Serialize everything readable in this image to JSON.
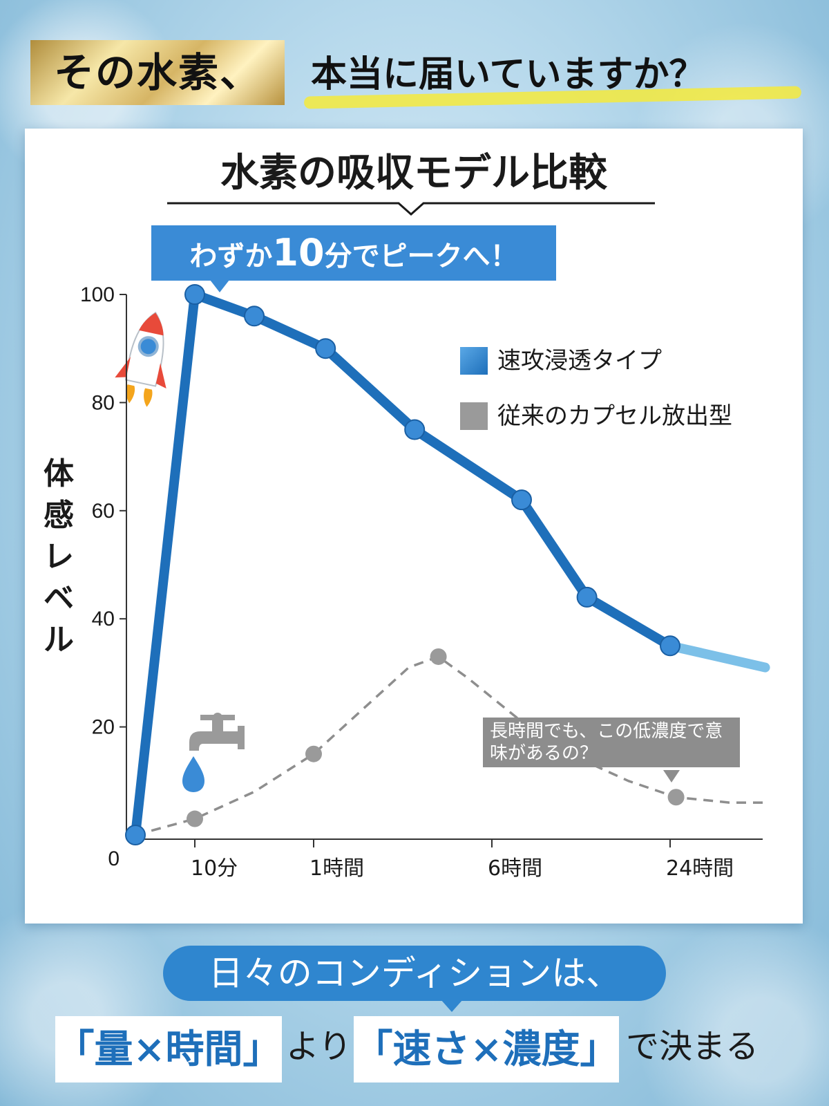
{
  "headline": {
    "highlight": "その水素、",
    "rest": "本当に届いていますか？"
  },
  "card_title": "水素の吸収モデル比較",
  "callout": {
    "pre": "わずか",
    "num": "10",
    "post": "分でピークへ！"
  },
  "note": "長時間でも、この低濃度で意味があるの？",
  "footer": {
    "pill": "日々のコンディションは、",
    "box1": "「量×時間」",
    "word1": "より",
    "box2": "「速さ×濃度」",
    "word2": "で決まる"
  },
  "colors": {
    "accent_blue": "#1e6fba",
    "light_blue": "#7cc0e8",
    "gray": "#9a9a9a"
  },
  "icons": [
    "rocket-icon",
    "faucet-icon",
    "water-drop-icon"
  ],
  "chart_data": {
    "type": "line",
    "ylabel": "体感レベル",
    "xlabel": "",
    "ylim": [
      0,
      100
    ],
    "yticks": [
      "0",
      "20",
      "40",
      "60",
      "80",
      "100"
    ],
    "xticks": [
      {
        "label": "10分",
        "x": 1
      },
      {
        "label": "1時間",
        "x": 3
      },
      {
        "label": "6時間",
        "x": 6
      },
      {
        "label": "24時間",
        "x": 9
      }
    ],
    "xlim": [
      0,
      10.6
    ],
    "series": [
      {
        "name": "速攻浸透タイプ",
        "style": "solid",
        "points": [
          [
            0,
            0
          ],
          [
            1,
            100
          ],
          [
            2,
            96
          ],
          [
            3.2,
            90
          ],
          [
            4.7,
            75
          ],
          [
            6.5,
            62
          ],
          [
            7.6,
            44
          ],
          [
            9,
            35
          ]
        ],
        "tail": [
          [
            9,
            35
          ],
          [
            10.6,
            31
          ]
        ]
      },
      {
        "name": "従来のカプセル放出型",
        "style": "dashed",
        "points": [
          [
            1,
            3
          ],
          [
            3,
            15
          ],
          [
            5.1,
            33
          ],
          [
            9.1,
            7
          ]
        ],
        "curve": [
          [
            0,
            0
          ],
          [
            1,
            3
          ],
          [
            2,
            8
          ],
          [
            3,
            15
          ],
          [
            4,
            25
          ],
          [
            4.6,
            31
          ],
          [
            5.1,
            33
          ],
          [
            5.6,
            29
          ],
          [
            6.5,
            21
          ],
          [
            7.5,
            14
          ],
          [
            8.3,
            10
          ],
          [
            9.1,
            7
          ],
          [
            10,
            6
          ],
          [
            10.6,
            6
          ]
        ]
      }
    ]
  }
}
